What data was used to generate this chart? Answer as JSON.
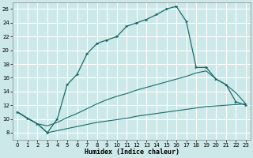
{
  "xlabel": "Humidex (Indice chaleur)",
  "bg_color": "#cce8e8",
  "grid_color": "#ffffff",
  "line_color": "#1a6b6b",
  "line1_x": [
    0,
    1,
    2,
    3,
    4,
    5,
    6,
    7,
    8,
    9,
    10,
    11,
    12,
    13,
    14,
    15,
    16,
    17,
    18,
    19,
    20,
    21,
    22,
    23
  ],
  "line1_y": [
    11.0,
    10.1,
    9.3,
    8.0,
    10.0,
    15.0,
    16.5,
    19.5,
    21.0,
    21.5,
    22.0,
    23.5,
    24.0,
    24.5,
    25.2,
    26.0,
    26.4,
    24.2,
    17.5,
    17.5,
    15.8,
    15.0,
    12.5,
    12.0
  ],
  "line2_x": [
    0,
    1,
    2,
    3,
    4,
    5,
    6,
    7,
    8,
    9,
    10,
    11,
    12,
    13,
    14,
    15,
    16,
    17,
    18,
    19,
    20,
    21,
    22,
    23
  ],
  "line2_y": [
    11.0,
    10.1,
    9.3,
    9.0,
    9.5,
    10.2,
    10.8,
    11.5,
    12.2,
    12.8,
    13.3,
    13.7,
    14.2,
    14.6,
    15.0,
    15.4,
    15.8,
    16.2,
    16.7,
    17.0,
    15.8,
    15.0,
    13.8,
    12.2
  ],
  "line3_x": [
    0,
    1,
    2,
    3,
    4,
    5,
    6,
    7,
    8,
    9,
    10,
    11,
    12,
    13,
    14,
    15,
    16,
    17,
    18,
    19,
    20,
    21,
    22,
    23
  ],
  "line3_y": [
    11.0,
    10.1,
    9.3,
    8.0,
    8.3,
    8.6,
    8.9,
    9.2,
    9.5,
    9.7,
    9.9,
    10.1,
    10.4,
    10.6,
    10.8,
    11.0,
    11.2,
    11.4,
    11.6,
    11.8,
    11.9,
    12.0,
    12.1,
    12.2
  ],
  "ylim": [
    7,
    27
  ],
  "xlim": [
    -0.5,
    23.5
  ],
  "yticks": [
    8,
    10,
    12,
    14,
    16,
    18,
    20,
    22,
    24,
    26
  ],
  "xticks": [
    0,
    1,
    2,
    3,
    4,
    5,
    6,
    7,
    8,
    9,
    10,
    11,
    12,
    13,
    14,
    15,
    16,
    17,
    18,
    19,
    20,
    21,
    22,
    23
  ]
}
